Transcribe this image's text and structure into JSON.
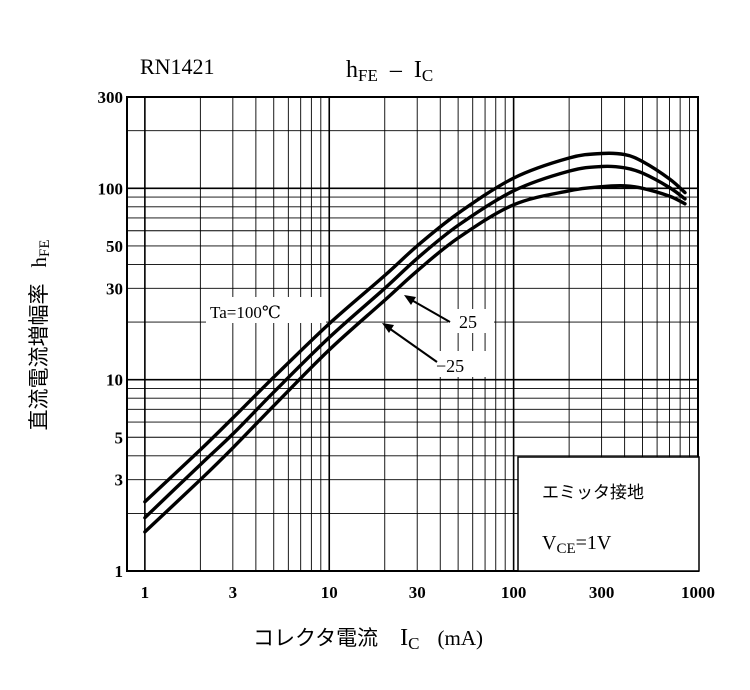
{
  "chart_data": {
    "type": "line",
    "part_number": "RN1421",
    "title": {
      "main": "h",
      "main_sub": "FE",
      "sep": "–",
      "x_main": "I",
      "x_sub": "C"
    },
    "ylabel": {
      "jp": "直流電流増幅率",
      "sym": "h",
      "sym_sub": "FE"
    },
    "xlabel": {
      "jp": "コレクタ電流",
      "sym": "I",
      "sym_sub": "C",
      "unit": "(mA)"
    },
    "x_scale": "log",
    "y_scale": "log",
    "xlim": [
      0.8,
      1000
    ],
    "ylim": [
      1,
      300
    ],
    "x_ticks": [
      1,
      3,
      10,
      30,
      100,
      300,
      1000
    ],
    "x_tick_labels": [
      "1",
      "3",
      "10",
      "30",
      "100",
      "300",
      "1000"
    ],
    "y_ticks": [
      1,
      3,
      5,
      10,
      30,
      50,
      100,
      300
    ],
    "y_tick_labels": [
      "1",
      "3",
      "5",
      "10",
      "30",
      "50",
      "100",
      "300"
    ],
    "grid": true,
    "series": [
      {
        "name": "Ta=100°C",
        "x": [
          1,
          2,
          3,
          5,
          10,
          20,
          30,
          50,
          100,
          200,
          300,
          400,
          500,
          700,
          850
        ],
        "y": [
          2.3,
          4.3,
          6.3,
          10.3,
          19.6,
          35,
          50,
          74,
          113,
          144,
          152,
          150,
          138,
          112,
          95
        ]
      },
      {
        "name": "25",
        "x": [
          1,
          2,
          3,
          5,
          10,
          20,
          30,
          50,
          100,
          200,
          300,
          400,
          500,
          700,
          850
        ],
        "y": [
          1.9,
          3.6,
          5.2,
          8.6,
          16.6,
          30,
          43,
          64,
          97,
          123,
          130,
          128,
          120,
          101,
          88
        ]
      },
      {
        "name": "-25",
        "x": [
          1,
          2,
          3,
          5,
          10,
          20,
          30,
          50,
          100,
          200,
          300,
          400,
          500,
          700,
          850
        ],
        "y": [
          1.6,
          3.0,
          4.4,
          7.3,
          14.3,
          26,
          37,
          55,
          82,
          97,
          102,
          103,
          100,
          91,
          83
        ]
      }
    ],
    "annotations": {
      "series_label_100": "Ta=100℃",
      "series_label_25": "25",
      "series_label_m25": "−25",
      "condition_title": "エミッタ接地",
      "condition_v": "V",
      "condition_v_sub": "CE",
      "condition_value": "=1V"
    }
  }
}
